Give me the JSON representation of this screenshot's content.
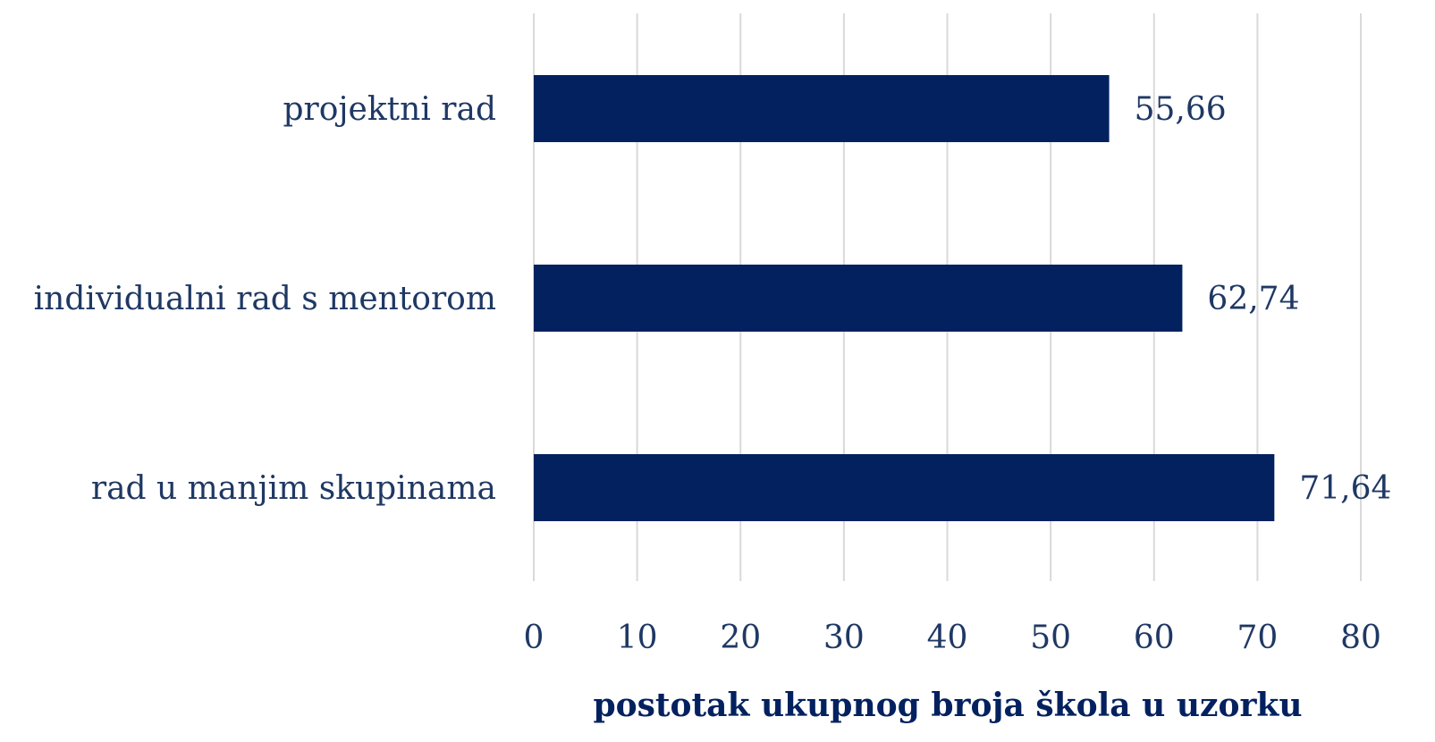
{
  "chart_data": {
    "type": "bar",
    "orientation": "horizontal",
    "categories": [
      "projektni rad",
      "individualni rad s mentorom",
      "rad u manjim skupinama"
    ],
    "values": [
      55.66,
      62.74,
      71.64
    ],
    "value_labels": [
      "55,66",
      "62,74",
      "71,64"
    ],
    "color": "#03215f",
    "xlabel": "postotak ukupnog broja škola u uzorku",
    "xlim": [
      0,
      80
    ],
    "xticks": [
      0,
      10,
      20,
      30,
      40,
      50,
      60,
      70,
      80
    ],
    "grid": true
  }
}
